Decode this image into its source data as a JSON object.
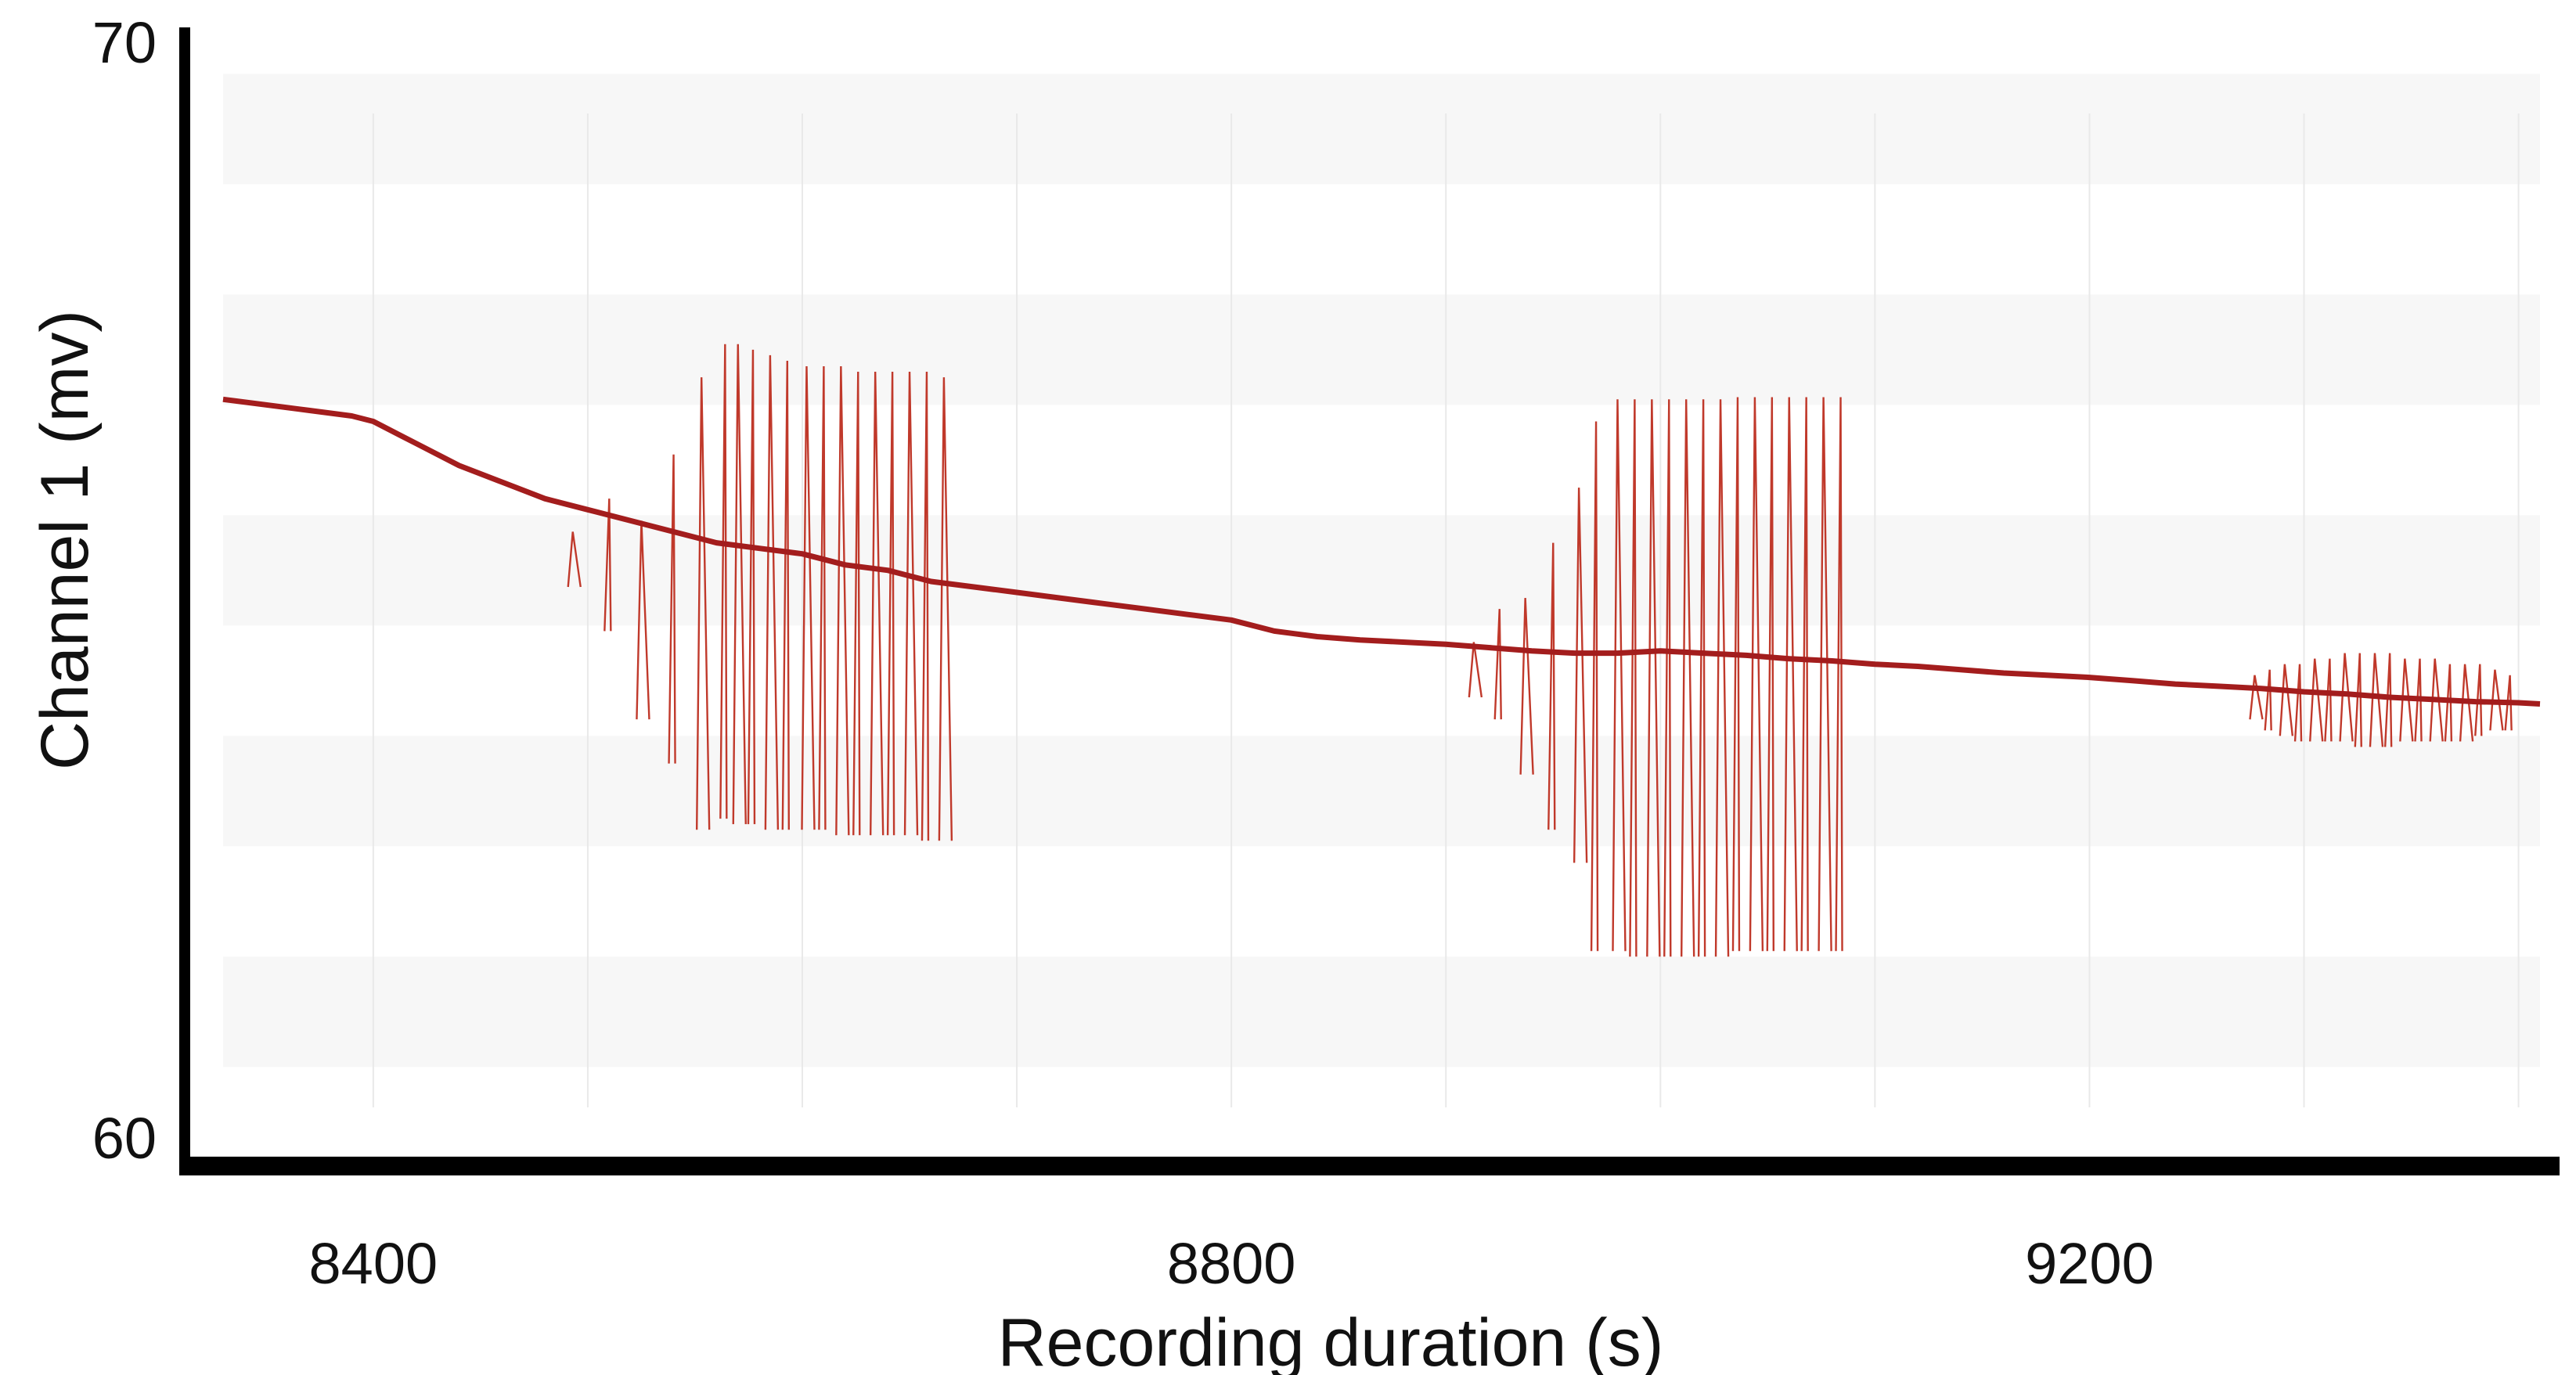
{
  "chart_data": {
    "type": "line",
    "title": "",
    "xlabel": "Recording duration (s)",
    "ylabel": "Channel 1 (mv)",
    "xlim": [
      8330,
      9410
    ],
    "ylim": [
      60,
      70
    ],
    "x_ticks": [
      8400,
      8800,
      9200
    ],
    "y_ticks": [
      60,
      70
    ],
    "grid": "alternating horizontal bands",
    "legend": "none",
    "series": [
      {
        "color": "#a31d1d",
        "points": [
          [
            8330,
            66.7
          ],
          [
            8350,
            66.65
          ],
          [
            8370,
            66.6
          ],
          [
            8390,
            66.55
          ],
          [
            8400,
            66.5
          ],
          [
            8420,
            66.3
          ],
          [
            8440,
            66.1
          ],
          [
            8460,
            65.95
          ],
          [
            8480,
            65.8
          ],
          [
            8500,
            65.7
          ],
          [
            8520,
            65.6
          ],
          [
            8540,
            65.5
          ],
          [
            8560,
            65.4
          ],
          [
            8580,
            65.35
          ],
          [
            8600,
            65.3
          ],
          [
            8620,
            65.2
          ],
          [
            8640,
            65.15
          ],
          [
            8660,
            65.05
          ],
          [
            8680,
            65.0
          ],
          [
            8700,
            64.95
          ],
          [
            8720,
            64.9
          ],
          [
            8740,
            64.85
          ],
          [
            8760,
            64.8
          ],
          [
            8780,
            64.75
          ],
          [
            8800,
            64.7
          ],
          [
            8820,
            64.6
          ],
          [
            8840,
            64.55
          ],
          [
            8860,
            64.52
          ],
          [
            8880,
            64.5
          ],
          [
            8900,
            64.48
          ],
          [
            8920,
            64.45
          ],
          [
            8940,
            64.42
          ],
          [
            8960,
            64.4
          ],
          [
            8980,
            64.4
          ],
          [
            9000,
            64.42
          ],
          [
            9020,
            64.4
          ],
          [
            9040,
            64.38
          ],
          [
            9060,
            64.35
          ],
          [
            9080,
            64.33
          ],
          [
            9100,
            64.3
          ],
          [
            9120,
            64.28
          ],
          [
            9140,
            64.25
          ],
          [
            9160,
            64.22
          ],
          [
            9180,
            64.2
          ],
          [
            9200,
            64.18
          ],
          [
            9220,
            64.15
          ],
          [
            9240,
            64.12
          ],
          [
            9260,
            64.1
          ],
          [
            9280,
            64.08
          ],
          [
            9300,
            64.05
          ],
          [
            9320,
            64.03
          ],
          [
            9340,
            64.0
          ],
          [
            9360,
            63.98
          ],
          [
            9380,
            63.96
          ],
          [
            9400,
            63.95
          ],
          [
            9410,
            63.94
          ]
        ]
      }
    ],
    "annotations": [
      {
        "kind": "oscillation",
        "spike_times": [
          8493,
          8510,
          8525,
          8540,
          8553,
          8564,
          8570,
          8577,
          8585,
          8593,
          8602,
          8610,
          8618,
          8626,
          8634,
          8642,
          8650,
          8658,
          8666
        ],
        "peaks": [
          65.5,
          65.8,
          65.6,
          66.2,
          66.9,
          67.2,
          67.2,
          67.15,
          67.1,
          67.05,
          67.0,
          67.0,
          67.0,
          66.95,
          66.95,
          66.95,
          66.95,
          66.95,
          66.9
        ],
        "troughs": [
          65.0,
          64.6,
          63.8,
          63.4,
          62.8,
          62.9,
          62.85,
          62.85,
          62.8,
          62.8,
          62.8,
          62.8,
          62.75,
          62.75,
          62.75,
          62.75,
          62.75,
          62.7,
          62.7
        ]
      },
      {
        "kind": "oscillation",
        "spike_times": [
          8913,
          8925,
          8937,
          8950,
          8962,
          8970,
          8980,
          8988,
          8996,
          9004,
          9012,
          9020,
          9028,
          9036,
          9044,
          9052,
          9060,
          9068,
          9076,
          9084
        ],
        "peaks": [
          64.5,
          64.8,
          64.9,
          65.4,
          65.9,
          66.5,
          66.7,
          66.7,
          66.7,
          66.7,
          66.7,
          66.7,
          66.7,
          66.72,
          66.72,
          66.72,
          66.72,
          66.72,
          66.72,
          66.72
        ],
        "troughs": [
          64.0,
          63.8,
          63.3,
          62.8,
          62.5,
          61.7,
          61.7,
          61.65,
          61.65,
          61.65,
          61.65,
          61.65,
          61.65,
          61.7,
          61.7,
          61.7,
          61.7,
          61.7,
          61.7,
          61.7
        ]
      },
      {
        "kind": "oscillation",
        "spike_times": [
          9277,
          9284,
          9291,
          9298,
          9305,
          9312,
          9319,
          9326,
          9333,
          9340,
          9347,
          9354,
          9361,
          9368,
          9375,
          9382,
          9389,
          9396
        ],
        "peaks": [
          64.2,
          64.25,
          64.3,
          64.3,
          64.35,
          64.35,
          64.4,
          64.4,
          64.4,
          64.4,
          64.35,
          64.35,
          64.35,
          64.3,
          64.3,
          64.3,
          64.25,
          64.2
        ],
        "troughs": [
          63.8,
          63.7,
          63.65,
          63.6,
          63.6,
          63.6,
          63.6,
          63.55,
          63.55,
          63.55,
          63.6,
          63.6,
          63.6,
          63.6,
          63.6,
          63.65,
          63.7,
          63.7
        ]
      }
    ]
  }
}
